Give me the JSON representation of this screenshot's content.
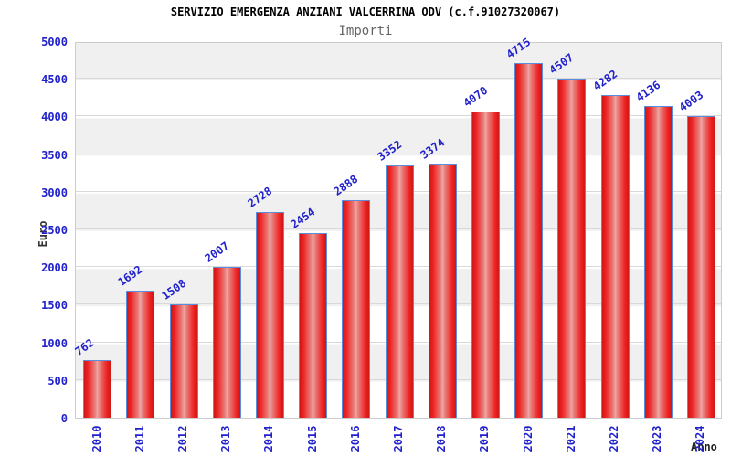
{
  "chart_data": {
    "type": "bar",
    "title": "SERVIZIO EMERGENZA ANZIANI VALCERRINA ODV (c.f.91027320067)",
    "subtitle": "Importi",
    "xlabel": "Anno",
    "ylabel": "Euro",
    "categories": [
      "2010",
      "2011",
      "2012",
      "2013",
      "2014",
      "2015",
      "2016",
      "2017",
      "2018",
      "2019",
      "2020",
      "2021",
      "2022",
      "2023",
      "2024"
    ],
    "values": [
      762,
      1692,
      1508,
      2007,
      2728,
      2454,
      2888,
      3352,
      3374,
      4070,
      4715,
      4507,
      4282,
      4136,
      4003
    ],
    "ylim": [
      0,
      5000
    ],
    "ytick_step": 500,
    "grid": true,
    "legend_position": "none",
    "colors": {
      "bar_fill_edge": "#cf1717",
      "bar_fill_main": "#ee2222",
      "bar_fill_center": "#efa7a5",
      "bar_border": "#5b8ddb",
      "label_text": "#2222cc",
      "band_gray": "#f0f0f0",
      "band_white": "#ffffff",
      "gridline": "#d9d9d9",
      "plot_border": "#cccccc",
      "title_text": "#000000",
      "subtitle_text": "#666666",
      "axis_title_text": "#333333"
    }
  }
}
